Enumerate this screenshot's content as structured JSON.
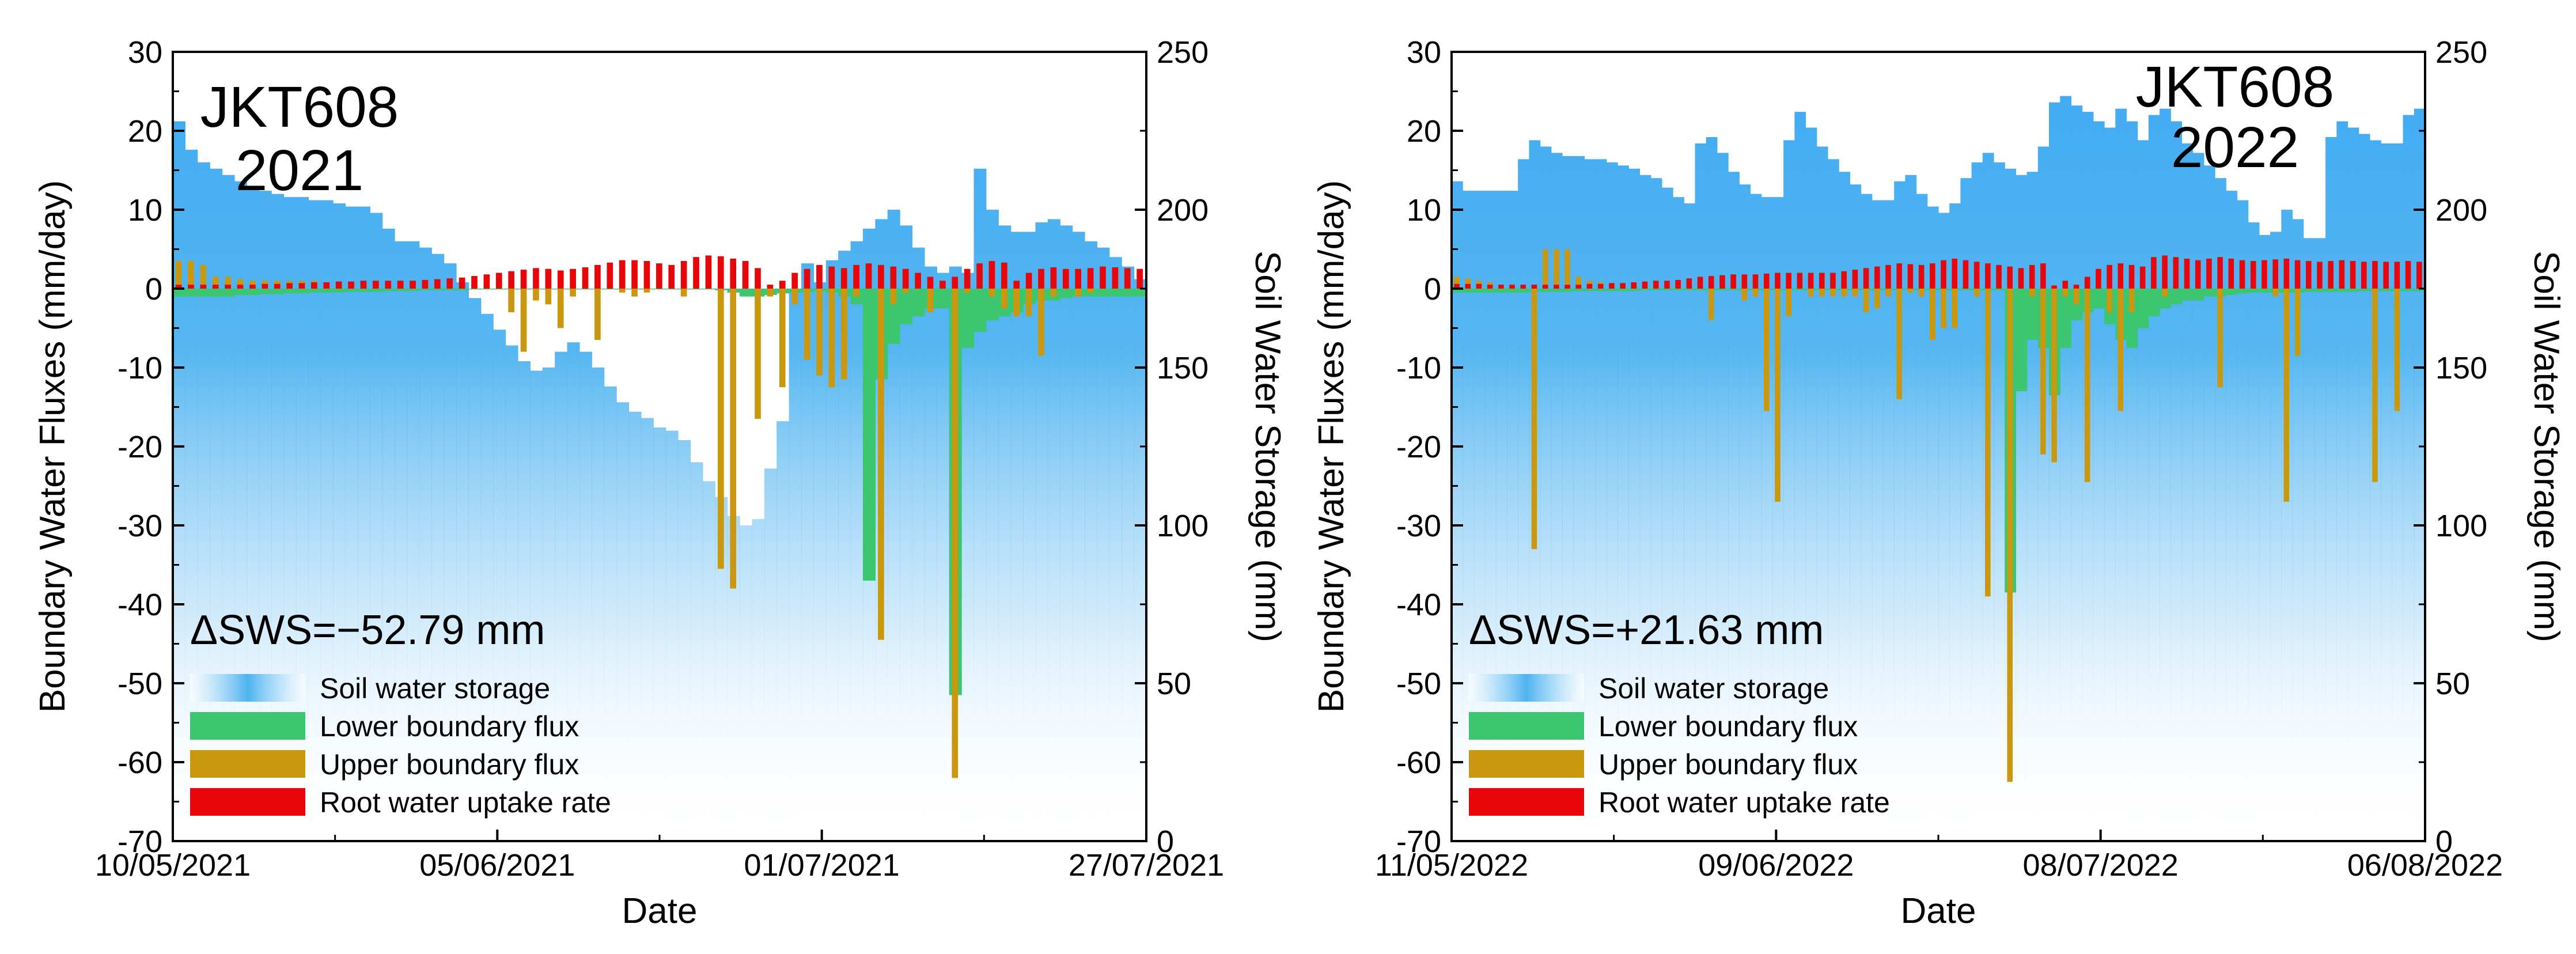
{
  "colors": {
    "storage": "#4db3f0",
    "lower": "#3cc66f",
    "upper": "#c9980e",
    "root": "#e8060a",
    "axis": "#000000"
  },
  "chart_data": [
    {
      "type": "bar",
      "site": "JKT608",
      "year": "2021",
      "title_lines": [
        "JKT608",
        "2021"
      ],
      "delta_sws": "ΔSWS=−52.79 mm",
      "xlabel": "Date",
      "ylabel_left": "Boundary Water Fluxes (mm/day)",
      "ylabel_right": "Soil Water Storage (mm)",
      "ylim_left": [
        -70,
        30
      ],
      "ylim_right": [
        0,
        250
      ],
      "yticks_left": [
        "30",
        "20",
        "10",
        "0",
        "-10",
        "-20",
        "-30",
        "-40",
        "-50",
        "-60",
        "-70"
      ],
      "yticks_right": [
        "250",
        "200",
        "150",
        "100",
        "50",
        "0"
      ],
      "xticks": [
        {
          "day": 0,
          "label": "10/05/2021"
        },
        {
          "day": 26,
          "label": "05/06/2021"
        },
        {
          "day": 52,
          "label": "01/07/2021"
        },
        {
          "day": 78,
          "label": "27/07/2021"
        }
      ],
      "n_days": 79,
      "legend": [
        "Soil water storage",
        "Lower boundary flux",
        "Upper boundary flux",
        "Root water uptake rate"
      ],
      "storage_mm": [
        228,
        219,
        215,
        213,
        211,
        209,
        207,
        206,
        205,
        204,
        204,
        203,
        203,
        202,
        201,
        201,
        199,
        194,
        190,
        190,
        188,
        186,
        183,
        177,
        172,
        167,
        162,
        157,
        152,
        149,
        150,
        155,
        158,
        155,
        150,
        144,
        139,
        136,
        134,
        131,
        130,
        127,
        120,
        114,
        109,
        103,
        100,
        102,
        118,
        133,
        175,
        183,
        177,
        184,
        187,
        190,
        194,
        197,
        200,
        195,
        188,
        182,
        180,
        182,
        180,
        213,
        200,
        195,
        193,
        193,
        196,
        197,
        195,
        193,
        190,
        188,
        185,
        182,
        178
      ],
      "root_uptake": [
        0.5,
        0.5,
        0.5,
        0.5,
        0.5,
        0.5,
        0.5,
        0.6,
        0.6,
        0.7,
        0.7,
        0.8,
        0.8,
        0.9,
        0.9,
        1.0,
        1.0,
        1.0,
        1.0,
        1.0,
        1.1,
        1.2,
        1.3,
        1.4,
        1.6,
        1.8,
        2.0,
        2.2,
        2.4,
        2.6,
        2.5,
        2.3,
        2.5,
        2.7,
        3.0,
        3.3,
        3.6,
        3.6,
        3.5,
        3.2,
        3.0,
        3.5,
        4.0,
        4.2,
        4.1,
        3.8,
        3.5,
        2.6,
        0.5,
        1.0,
        2.0,
        2.5,
        3.0,
        2.8,
        2.6,
        3.0,
        3.2,
        3.0,
        2.8,
        2.5,
        2.0,
        1.5,
        1.0,
        1.5,
        2.5,
        3.2,
        3.5,
        3.3,
        1.0,
        2.0,
        2.5,
        2.7,
        2.5,
        2.5,
        2.6,
        2.8,
        2.7,
        2.6,
        2.5
      ],
      "upper_flux": [
        3.5,
        3.5,
        3.0,
        1.5,
        1.5,
        1.2,
        1.0,
        1.0,
        1.0,
        1.0,
        1.0,
        1.0,
        0.8,
        0.8,
        0.6,
        0.5,
        0.5,
        0.4,
        0.3,
        0.3,
        0.2,
        0.2,
        0.2,
        0.2,
        0.0,
        0.0,
        0.0,
        -3.0,
        -8.0,
        -1.5,
        -2.0,
        -5.0,
        -1.0,
        0.0,
        -6.5,
        0.0,
        -0.5,
        -1.0,
        -0.5,
        0.0,
        0.0,
        -1.0,
        0.0,
        0.0,
        -35.5,
        -38.0,
        0.0,
        -16.5,
        -1.0,
        -12.5,
        -2.0,
        -9.0,
        -11.0,
        -12.5,
        -11.5,
        -1.0,
        0.0,
        -44.5,
        -2.0,
        -0.5,
        0.0,
        -3.0,
        0.0,
        -62.0,
        -0.5,
        0.0,
        -1.0,
        -2.5,
        -3.5,
        -3.5,
        -8.5,
        -1.0,
        0.0,
        -1.0,
        -0.5,
        0.0,
        0.0,
        0.0,
        0.0
      ],
      "lower_flux": [
        -1.0,
        -1.0,
        -1.0,
        -1.0,
        -1.0,
        -0.8,
        -0.8,
        -0.7,
        -0.7,
        -0.6,
        -0.6,
        -0.5,
        -0.5,
        -0.5,
        -0.4,
        -0.4,
        -0.4,
        -0.3,
        -0.3,
        -0.3,
        -0.2,
        -0.2,
        -0.2,
        -0.2,
        -0.1,
        -0.1,
        -0.1,
        -0.1,
        -0.1,
        -0.1,
        -0.1,
        -0.1,
        -0.1,
        -0.1,
        -0.1,
        -0.1,
        -0.1,
        -0.1,
        -0.1,
        -0.1,
        -0.1,
        -0.1,
        -0.1,
        -0.1,
        -0.2,
        -0.5,
        -1.0,
        -1.0,
        -0.8,
        -0.6,
        -0.5,
        -0.4,
        -0.3,
        -0.5,
        -1.0,
        -2.0,
        -37.0,
        -11.5,
        -7.0,
        -4.5,
        -3.5,
        -2.5,
        -2.5,
        -51.5,
        -7.5,
        -5.5,
        -4.0,
        -3.5,
        -3.0,
        -2.0,
        -1.5,
        -1.5,
        -1.2,
        -1.0,
        -1.0,
        -1.0,
        -1.0,
        -1.0,
        -1.0
      ]
    },
    {
      "type": "bar",
      "site": "JKT608",
      "year": "2022",
      "title_lines": [
        "JKT608",
        "2022"
      ],
      "delta_sws": "ΔSWS=+21.63 mm",
      "xlabel": "Date",
      "ylabel_left": "Boundary Water Fluxes (mm/day)",
      "ylabel_right": "Soil Water Storage (mm)",
      "ylim_left": [
        -70,
        30
      ],
      "ylim_right": [
        0,
        250
      ],
      "yticks_left": [
        "30",
        "20",
        "10",
        "0",
        "-10",
        "-20",
        "-30",
        "-40",
        "-50",
        "-60",
        "-70"
      ],
      "yticks_right": [
        "250",
        "200",
        "150",
        "100",
        "50",
        "0"
      ],
      "xticks": [
        {
          "day": 0,
          "label": "11/05/2022"
        },
        {
          "day": 29,
          "label": "09/06/2022"
        },
        {
          "day": 58,
          "label": "08/07/2022"
        },
        {
          "day": 87,
          "label": "06/08/2022"
        }
      ],
      "n_days": 88,
      "legend": [
        "Soil water storage",
        "Lower boundary flux",
        "Upper boundary flux",
        "Root water uptake rate"
      ],
      "storage_mm": [
        209,
        206,
        206,
        206,
        206,
        206,
        216,
        222,
        220,
        218,
        217,
        217,
        216,
        216,
        215,
        214,
        213,
        211,
        210,
        207,
        204,
        202,
        221,
        223,
        218,
        212,
        208,
        205,
        204,
        204,
        222,
        231,
        226,
        220,
        216,
        212,
        208,
        205,
        203,
        203,
        209,
        211,
        205,
        201,
        199,
        202,
        210,
        215,
        218,
        215,
        213,
        211,
        212,
        220,
        234,
        236,
        233,
        231,
        228,
        226,
        232,
        228,
        222,
        230,
        232,
        228,
        221,
        218,
        214,
        210,
        206,
        203,
        196,
        192,
        193,
        200,
        197,
        191,
        191,
        223,
        228,
        226,
        224,
        222,
        221,
        221,
        230,
        232
      ],
      "root_uptake": [
        0.6,
        0.6,
        0.6,
        0.5,
        0.5,
        0.5,
        0.5,
        0.5,
        0.5,
        0.5,
        0.5,
        0.5,
        0.6,
        0.6,
        0.7,
        0.7,
        0.8,
        0.9,
        1.0,
        1.0,
        1.1,
        1.3,
        1.5,
        1.6,
        1.7,
        1.8,
        1.8,
        1.8,
        1.9,
        2.0,
        2.0,
        2.0,
        2.0,
        2.0,
        2.0,
        2.2,
        2.4,
        2.6,
        2.8,
        3.0,
        3.2,
        3.1,
        3.0,
        3.2,
        3.6,
        3.8,
        3.6,
        3.4,
        3.2,
        3.0,
        2.8,
        2.6,
        3.0,
        3.2,
        0.4,
        1.0,
        0.5,
        1.5,
        2.5,
        3.0,
        3.2,
        3.0,
        2.8,
        4.0,
        4.2,
        4.0,
        3.8,
        3.6,
        3.8,
        4.0,
        3.8,
        3.6,
        3.5,
        3.6,
        3.7,
        3.8,
        3.6,
        3.5,
        3.4,
        3.5,
        3.6,
        3.5,
        3.4,
        3.5,
        3.4,
        3.4,
        3.5,
        3.4
      ],
      "upper_flux": [
        1.5,
        1.3,
        1.0,
        0.8,
        0.5,
        0.3,
        0.2,
        -33.0,
        5.0,
        5.0,
        5.0,
        1.5,
        1.0,
        0.8,
        0.6,
        0.5,
        0.4,
        0.4,
        0.3,
        0.3,
        0.2,
        0.2,
        0.2,
        -4.0,
        0.0,
        0.0,
        -1.5,
        -1.0,
        -15.5,
        -27.0,
        -3.5,
        0.0,
        -1.0,
        -1.0,
        -1.0,
        -1.0,
        -1.0,
        -3.0,
        -2.5,
        -1.0,
        -14.0,
        -0.5,
        -1.0,
        -6.5,
        -5.0,
        -5.0,
        0.0,
        -1.0,
        -39.0,
        0.0,
        -62.5,
        0.0,
        -1.0,
        -21.0,
        -22.0,
        -1.0,
        -2.0,
        -24.5,
        0.0,
        -3.0,
        -15.5,
        -3.0,
        0.0,
        0.0,
        -1.0,
        0.0,
        0.0,
        0.0,
        0.0,
        -12.5,
        0.0,
        0.0,
        0.0,
        0.0,
        -1.0,
        -27.0,
        -8.5,
        0.0,
        0.0,
        0.0,
        0.0,
        0.0,
        0.0,
        -24.5,
        0.0,
        -15.5,
        0.0,
        0.0
      ],
      "lower_flux": [
        -0.5,
        -0.5,
        -0.5,
        -0.5,
        -0.5,
        -0.5,
        -0.5,
        -0.4,
        -0.4,
        -0.4,
        -0.4,
        -0.3,
        -0.3,
        -0.3,
        -0.3,
        -0.3,
        -0.3,
        -0.2,
        -0.2,
        -0.2,
        -0.2,
        -0.2,
        -0.2,
        -0.2,
        -0.2,
        -0.2,
        -0.2,
        -0.2,
        -0.2,
        -0.2,
        -0.2,
        -0.2,
        -0.2,
        -0.2,
        -0.2,
        -0.2,
        -0.2,
        -0.2,
        -0.2,
        -0.2,
        -0.2,
        -0.2,
        -0.2,
        -0.2,
        -0.2,
        -0.2,
        -0.2,
        -0.2,
        -0.2,
        -0.2,
        -38.5,
        -13.0,
        -6.5,
        -7.5,
        -13.5,
        -7.5,
        -4.0,
        -3.0,
        -2.5,
        -4.5,
        -6.5,
        -7.5,
        -5.0,
        -3.5,
        -2.5,
        -2.0,
        -1.5,
        -1.5,
        -1.0,
        -1.0,
        -0.8,
        -0.6,
        -0.5,
        -0.5,
        -0.5,
        -0.5,
        -0.5,
        -0.4,
        -0.4,
        -0.4,
        -0.4,
        -0.4,
        -0.3,
        -0.3,
        -0.3,
        -0.3,
        -0.3,
        -0.3
      ]
    }
  ]
}
